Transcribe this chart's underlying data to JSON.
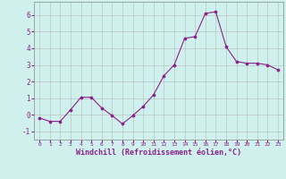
{
  "x": [
    0,
    1,
    2,
    3,
    4,
    5,
    6,
    7,
    8,
    9,
    10,
    11,
    12,
    13,
    14,
    15,
    16,
    17,
    18,
    19,
    20,
    21,
    22,
    23
  ],
  "y": [
    -0.2,
    -0.4,
    -0.4,
    0.3,
    1.05,
    1.05,
    0.4,
    -0.05,
    -0.55,
    -0.05,
    0.5,
    1.2,
    2.35,
    3.0,
    4.6,
    4.7,
    6.1,
    6.2,
    4.1,
    3.2,
    3.1,
    3.1,
    3.0,
    2.7
  ],
  "line_color": "#882288",
  "marker": "o",
  "marker_size": 2,
  "bg_color": "#cff0ec",
  "grid_color": "#b0b0b0",
  "xlabel": "Windchill (Refroidissement éolien,°C)",
  "ylim": [
    -1.5,
    6.8
  ],
  "xlim": [
    -0.5,
    23.5
  ],
  "yticks": [
    -1,
    0,
    1,
    2,
    3,
    4,
    5,
    6
  ],
  "xticks": [
    0,
    1,
    2,
    3,
    4,
    5,
    6,
    7,
    8,
    9,
    10,
    11,
    12,
    13,
    14,
    15,
    16,
    17,
    18,
    19,
    20,
    21,
    22,
    23
  ],
  "label_color": "#882288",
  "tick_color": "#882288",
  "spine_color": "#888888"
}
